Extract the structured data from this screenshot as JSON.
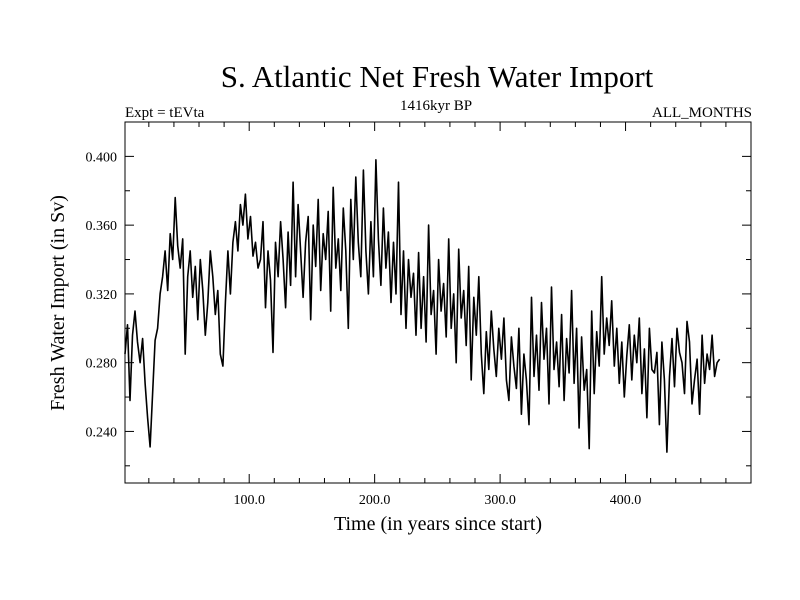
{
  "chart_data": {
    "type": "line",
    "title": "S. Atlantic Net Fresh Water Import",
    "subtitle_left": "Expt = tEVta",
    "subtitle_center": "1416kyr BP",
    "subtitle_right": "ALL_MONTHS",
    "xlabel": "Time (in years since start)",
    "ylabel": "Fresh Water Import (in Sv)",
    "xlim": [
      1,
      500
    ],
    "ylim": [
      0.21,
      0.42
    ],
    "x_ticks": [
      100,
      200,
      300,
      400
    ],
    "x_tick_labels": [
      "100.0",
      "200.0",
      "300.0",
      "400.0"
    ],
    "y_ticks": [
      0.24,
      0.28,
      0.32,
      0.36,
      0.4
    ],
    "y_tick_labels": [
      "0.240",
      "0.280",
      "0.320",
      "0.360",
      "0.400"
    ],
    "grid": false,
    "series": [
      {
        "name": "Fresh Water Import",
        "color": "#000000",
        "x_start": 1,
        "x_step": 2,
        "values": [
          0.285,
          0.302,
          0.258,
          0.296,
          0.31,
          0.292,
          0.28,
          0.294,
          0.268,
          0.248,
          0.231,
          0.262,
          0.293,
          0.3,
          0.32,
          0.33,
          0.345,
          0.322,
          0.355,
          0.34,
          0.376,
          0.348,
          0.335,
          0.352,
          0.285,
          0.33,
          0.345,
          0.318,
          0.336,
          0.305,
          0.34,
          0.322,
          0.296,
          0.315,
          0.345,
          0.33,
          0.308,
          0.322,
          0.285,
          0.278,
          0.315,
          0.345,
          0.32,
          0.35,
          0.362,
          0.345,
          0.372,
          0.36,
          0.378,
          0.352,
          0.365,
          0.342,
          0.35,
          0.335,
          0.34,
          0.362,
          0.312,
          0.345,
          0.328,
          0.286,
          0.35,
          0.33,
          0.362,
          0.34,
          0.312,
          0.356,
          0.325,
          0.385,
          0.33,
          0.372,
          0.345,
          0.318,
          0.35,
          0.365,
          0.305,
          0.36,
          0.336,
          0.375,
          0.322,
          0.355,
          0.34,
          0.368,
          0.31,
          0.382,
          0.335,
          0.352,
          0.322,
          0.37,
          0.345,
          0.3,
          0.375,
          0.34,
          0.388,
          0.35,
          0.33,
          0.392,
          0.345,
          0.32,
          0.362,
          0.33,
          0.398,
          0.352,
          0.325,
          0.37,
          0.335,
          0.356,
          0.315,
          0.35,
          0.32,
          0.385,
          0.308,
          0.345,
          0.3,
          0.34,
          0.318,
          0.332,
          0.296,
          0.344,
          0.3,
          0.33,
          0.292,
          0.36,
          0.308,
          0.322,
          0.285,
          0.34,
          0.31,
          0.326,
          0.295,
          0.352,
          0.3,
          0.32,
          0.28,
          0.346,
          0.306,
          0.322,
          0.29,
          0.336,
          0.27,
          0.318,
          0.296,
          0.33,
          0.285,
          0.262,
          0.298,
          0.276,
          0.31,
          0.288,
          0.272,
          0.3,
          0.282,
          0.306,
          0.27,
          0.258,
          0.295,
          0.278,
          0.265,
          0.3,
          0.25,
          0.285,
          0.27,
          0.244,
          0.318,
          0.272,
          0.296,
          0.264,
          0.315,
          0.282,
          0.3,
          0.256,
          0.324,
          0.276,
          0.292,
          0.266,
          0.308,
          0.258,
          0.294,
          0.274,
          0.322,
          0.268,
          0.3,
          0.242,
          0.295,
          0.264,
          0.276,
          0.23,
          0.31,
          0.262,
          0.298,
          0.278,
          0.33,
          0.285,
          0.306,
          0.29,
          0.316,
          0.278,
          0.3,
          0.268,
          0.292,
          0.26,
          0.284,
          0.302,
          0.27,
          0.296,
          0.28,
          0.306,
          0.262,
          0.288,
          0.248,
          0.3,
          0.276,
          0.274,
          0.286,
          0.244,
          0.292,
          0.27,
          0.228,
          0.272,
          0.294,
          0.266,
          0.3,
          0.286,
          0.28,
          0.262,
          0.304,
          0.292,
          0.256,
          0.27,
          0.282,
          0.25,
          0.296,
          0.268,
          0.285,
          0.276,
          0.296,
          0.272,
          0.28,
          0.282
        ]
      }
    ]
  }
}
